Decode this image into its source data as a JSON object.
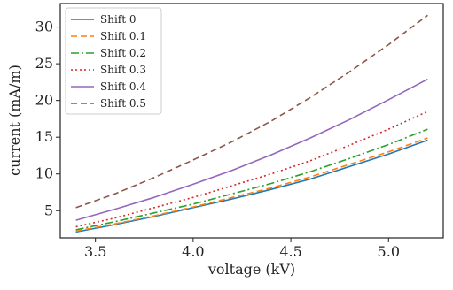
{
  "chart_data": {
    "type": "line",
    "xlabel": "voltage (kV)",
    "ylabel": "current (mA/m)",
    "xlim": [
      3.32,
      5.28
    ],
    "ylim": [
      1.3,
      33.2
    ],
    "x_ticks": [
      3.5,
      4.0,
      4.5,
      5.0
    ],
    "x_tick_labels": [
      "3.5",
      "4.0",
      "4.5",
      "5.0"
    ],
    "y_ticks": [
      5,
      10,
      15,
      20,
      25,
      30
    ],
    "y_tick_labels": [
      "5",
      "10",
      "15",
      "20",
      "25",
      "30"
    ],
    "grid": false,
    "legend_position": "top-left",
    "x": [
      3.4,
      3.6,
      3.8,
      4.0,
      4.2,
      4.4,
      4.6,
      4.8,
      5.0,
      5.2
    ],
    "series": [
      {
        "name": "Shift 0",
        "color": "#1f77b4",
        "dash": "solid",
        "values": [
          2.1,
          3.1,
          4.2,
          5.4,
          6.6,
          7.9,
          9.3,
          11.0,
          12.7,
          14.6
        ]
      },
      {
        "name": "Shift 0.1",
        "color": "#ff7f0e",
        "dash": "dashed",
        "values": [
          2.2,
          3.2,
          4.3,
          5.5,
          6.8,
          8.1,
          9.6,
          11.3,
          13.0,
          14.9
        ]
      },
      {
        "name": "Shift 0.2",
        "color": "#2ca02c",
        "dash": "dashdot",
        "values": [
          2.4,
          3.5,
          4.7,
          5.9,
          7.3,
          8.7,
          10.3,
          12.1,
          14.0,
          16.1
        ]
      },
      {
        "name": "Shift 0.3",
        "color": "#d62728",
        "dash": "dotted",
        "values": [
          2.8,
          4.0,
          5.4,
          6.8,
          8.4,
          10.0,
          11.8,
          13.9,
          16.1,
          18.5
        ]
      },
      {
        "name": "Shift 0.4",
        "color": "#9467bd",
        "dash": "solid",
        "values": [
          3.7,
          5.2,
          6.8,
          8.6,
          10.5,
          12.6,
          14.9,
          17.4,
          20.1,
          22.9
        ]
      },
      {
        "name": "Shift 0.5",
        "color": "#8c564b",
        "dash": "dashed",
        "values": [
          5.4,
          7.3,
          9.5,
          11.9,
          14.4,
          17.2,
          20.4,
          23.9,
          27.6,
          31.6
        ]
      }
    ]
  }
}
